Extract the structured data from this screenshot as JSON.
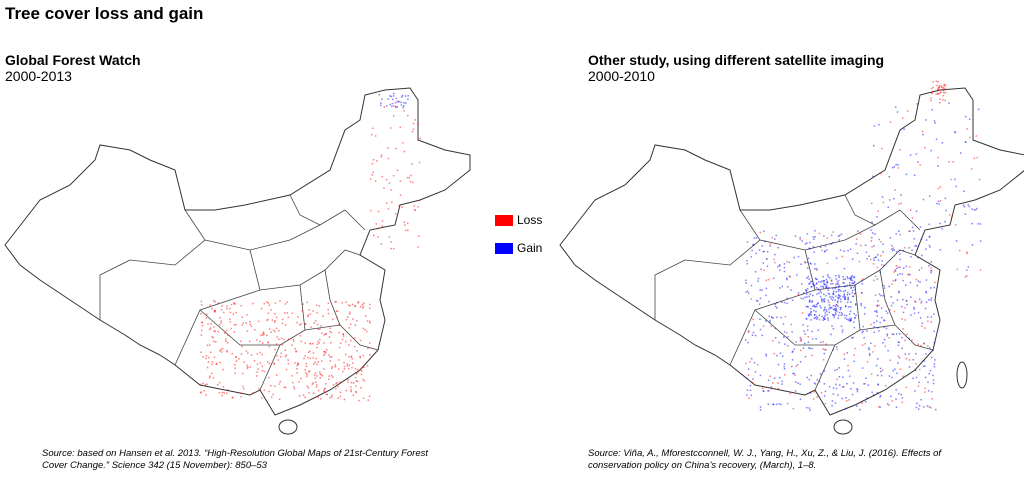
{
  "title": "Tree cover loss and gain",
  "panels": [
    {
      "title": "Global Forest Watch",
      "subtitle": "2000-2013",
      "source": "Source: based on Hansen et al. 2013. “High-Resolution Global Maps of 21st-Century Forest Cover Change.” Science 342 (15 November): 850–53"
    },
    {
      "title": "Other study, using different satellite imaging",
      "subtitle": "2000-2010",
      "source": "Source: Viña, A., Mforestcconnell, W. J., Yang, H., Xu, Z., & Liu, J. (2016). Effects of conservation policy on China’s recovery, (March), 1–8."
    }
  ],
  "legend": [
    {
      "label": "Loss",
      "color": "#ff0000"
    },
    {
      "label": "Gain",
      "color": "#0000ff"
    }
  ]
}
